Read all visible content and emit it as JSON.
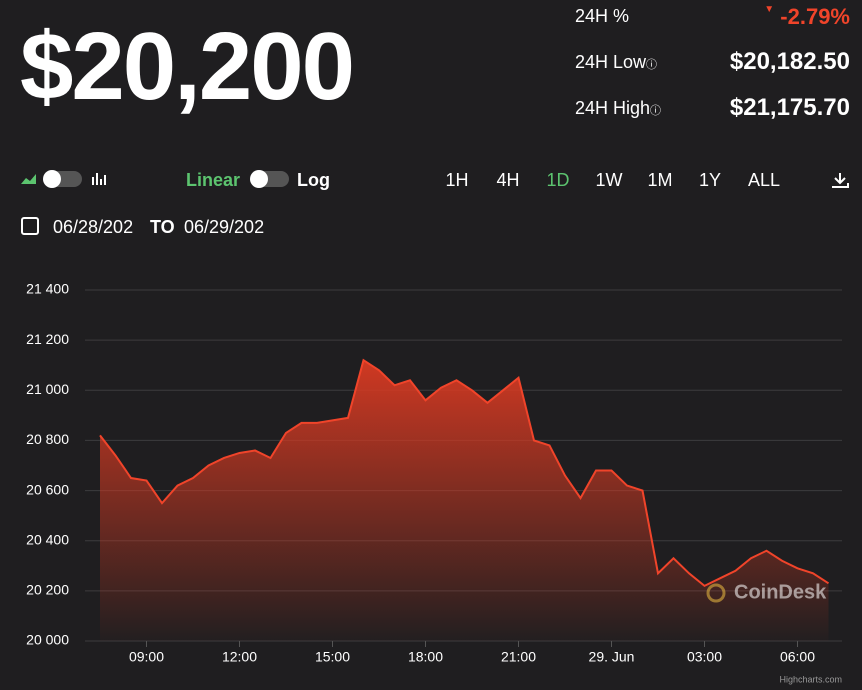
{
  "header": {
    "price": "$20,200",
    "stats": [
      {
        "label": "24H %",
        "value": "-2.79%"
      },
      {
        "label": "24H Low",
        "value": "$20,182.50"
      },
      {
        "label": "24H High",
        "value": "$21,175.70"
      }
    ]
  },
  "controls": {
    "scale_linear": "Linear",
    "scale_log": "Log",
    "ranges": [
      "1H",
      "4H",
      "1D",
      "1W",
      "1M",
      "1Y",
      "ALL"
    ],
    "active_range": "1D",
    "date_from": "06/28/202",
    "date_sep": "TO",
    "date_to": "06/29/202"
  },
  "watermark": "CoinDesk",
  "credit": "Highcharts.com",
  "chart_data": {
    "type": "area",
    "categories": [
      null,
      null,
      null,
      "09:00",
      null,
      null,
      null,
      null,
      null,
      "12:00",
      null,
      null,
      null,
      null,
      null,
      "15:00",
      null,
      null,
      null,
      null,
      null,
      "18:00",
      null,
      null,
      null,
      null,
      null,
      "21:00",
      null,
      null,
      null,
      null,
      null,
      "29. Jun",
      null,
      null,
      null,
      null,
      null,
      "03:00",
      null,
      null,
      null,
      null,
      null,
      "06:00",
      null,
      null
    ],
    "series": [
      {
        "color": "#f0442a",
        "values": [
          20820,
          20740,
          20650,
          20640,
          20550,
          20620,
          20650,
          20700,
          20730,
          20750,
          20760,
          20730,
          20830,
          20870,
          20870,
          20880,
          20890,
          21120,
          21080,
          21020,
          21040,
          20960,
          21010,
          21040,
          21000,
          20950,
          21000,
          21050,
          20800,
          20780,
          20660,
          20570,
          20680,
          20680,
          20620,
          20600,
          20270,
          20330,
          20270,
          20220,
          20250,
          20280,
          20330,
          20360,
          20320,
          20290,
          20270,
          20230
        ]
      }
    ],
    "ylim": [
      20000,
      21400
    ],
    "yticks": [
      {
        "value": 20000,
        "label": "20 000"
      },
      {
        "value": 20200,
        "label": "20 200"
      },
      {
        "value": 20400,
        "label": "20 400"
      },
      {
        "value": 20600,
        "label": "20 600"
      },
      {
        "value": 20800,
        "label": "20 800"
      },
      {
        "value": 21000,
        "label": "21 000"
      },
      {
        "value": 21200,
        "label": "21 200"
      },
      {
        "value": 21400,
        "label": "21 400"
      }
    ],
    "grid": true
  }
}
